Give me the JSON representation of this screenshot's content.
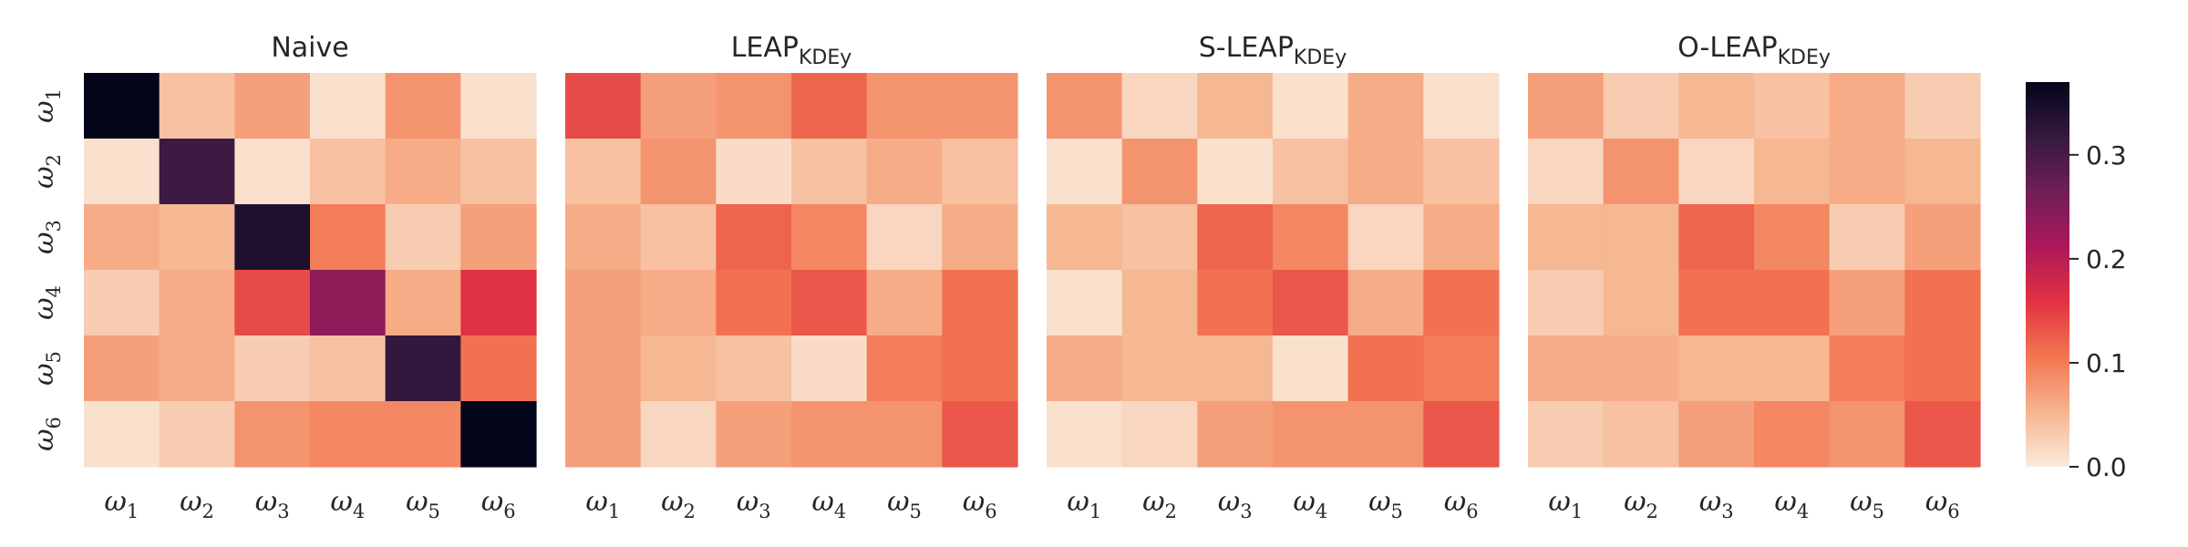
{
  "chart_data": [
    {
      "type": "heatmap",
      "title": "Naive",
      "title_sub": "",
      "x_labels": [
        {
          "base": "ω",
          "sub": "1"
        },
        {
          "base": "ω",
          "sub": "2"
        },
        {
          "base": "ω",
          "sub": "3"
        },
        {
          "base": "ω",
          "sub": "4"
        },
        {
          "base": "ω",
          "sub": "5"
        },
        {
          "base": "ω",
          "sub": "6"
        }
      ],
      "y_labels": [
        {
          "base": "ω",
          "sub": "1"
        },
        {
          "base": "ω",
          "sub": "2"
        },
        {
          "base": "ω",
          "sub": "3"
        },
        {
          "base": "ω",
          "sub": "4"
        },
        {
          "base": "ω",
          "sub": "5"
        },
        {
          "base": "ω",
          "sub": "6"
        }
      ],
      "values": [
        [
          0.37,
          0.04,
          0.07,
          0.01,
          0.08,
          0.01
        ],
        [
          0.01,
          0.31,
          0.01,
          0.04,
          0.06,
          0.04
        ],
        [
          0.06,
          0.05,
          0.34,
          0.1,
          0.03,
          0.07
        ],
        [
          0.03,
          0.06,
          0.14,
          0.24,
          0.06,
          0.16
        ],
        [
          0.07,
          0.06,
          0.03,
          0.04,
          0.32,
          0.11
        ],
        [
          0.01,
          0.03,
          0.08,
          0.09,
          0.09,
          0.37
        ]
      ]
    },
    {
      "type": "heatmap",
      "title": "LEAP",
      "title_sub": "KDEy",
      "x_labels": [
        {
          "base": "ω",
          "sub": "1"
        },
        {
          "base": "ω",
          "sub": "2"
        },
        {
          "base": "ω",
          "sub": "3"
        },
        {
          "base": "ω",
          "sub": "4"
        },
        {
          "base": "ω",
          "sub": "5"
        },
        {
          "base": "ω",
          "sub": "6"
        }
      ],
      "y_labels": [
        {
          "base": "ω",
          "sub": "1"
        },
        {
          "base": "ω",
          "sub": "2"
        },
        {
          "base": "ω",
          "sub": "3"
        },
        {
          "base": "ω",
          "sub": "4"
        },
        {
          "base": "ω",
          "sub": "5"
        },
        {
          "base": "ω",
          "sub": "6"
        }
      ],
      "values": [
        [
          0.14,
          0.07,
          0.08,
          0.12,
          0.08,
          0.08
        ],
        [
          0.04,
          0.08,
          0.015,
          0.04,
          0.06,
          0.04
        ],
        [
          0.06,
          0.04,
          0.12,
          0.09,
          0.02,
          0.06
        ],
        [
          0.07,
          0.06,
          0.11,
          0.13,
          0.06,
          0.11
        ],
        [
          0.07,
          0.05,
          0.04,
          0.015,
          0.1,
          0.11
        ],
        [
          0.07,
          0.02,
          0.07,
          0.08,
          0.08,
          0.13
        ]
      ]
    },
    {
      "type": "heatmap",
      "title": "S-LEAP",
      "title_sub": "KDEy",
      "x_labels": [
        {
          "base": "ω",
          "sub": "1"
        },
        {
          "base": "ω",
          "sub": "2"
        },
        {
          "base": "ω",
          "sub": "3"
        },
        {
          "base": "ω",
          "sub": "4"
        },
        {
          "base": "ω",
          "sub": "5"
        },
        {
          "base": "ω",
          "sub": "6"
        }
      ],
      "y_labels": [
        {
          "base": "ω",
          "sub": "1"
        },
        {
          "base": "ω",
          "sub": "2"
        },
        {
          "base": "ω",
          "sub": "3"
        },
        {
          "base": "ω",
          "sub": "4"
        },
        {
          "base": "ω",
          "sub": "5"
        },
        {
          "base": "ω",
          "sub": "6"
        }
      ],
      "values": [
        [
          0.08,
          0.02,
          0.05,
          0.01,
          0.06,
          0.01
        ],
        [
          0.01,
          0.08,
          0.01,
          0.04,
          0.06,
          0.04
        ],
        [
          0.05,
          0.04,
          0.12,
          0.09,
          0.02,
          0.06
        ],
        [
          0.01,
          0.05,
          0.11,
          0.13,
          0.06,
          0.11
        ],
        [
          0.06,
          0.05,
          0.05,
          0.01,
          0.11,
          0.1
        ],
        [
          0.01,
          0.02,
          0.07,
          0.08,
          0.08,
          0.13
        ]
      ]
    },
    {
      "type": "heatmap",
      "title": "O-LEAP",
      "title_sub": "KDEy",
      "x_labels": [
        {
          "base": "ω",
          "sub": "1"
        },
        {
          "base": "ω",
          "sub": "2"
        },
        {
          "base": "ω",
          "sub": "3"
        },
        {
          "base": "ω",
          "sub": "4"
        },
        {
          "base": "ω",
          "sub": "5"
        },
        {
          "base": "ω",
          "sub": "6"
        }
      ],
      "y_labels": [
        {
          "base": "ω",
          "sub": "1"
        },
        {
          "base": "ω",
          "sub": "2"
        },
        {
          "base": "ω",
          "sub": "3"
        },
        {
          "base": "ω",
          "sub": "4"
        },
        {
          "base": "ω",
          "sub": "5"
        },
        {
          "base": "ω",
          "sub": "6"
        }
      ],
      "values": [
        [
          0.07,
          0.03,
          0.05,
          0.04,
          0.06,
          0.03
        ],
        [
          0.02,
          0.08,
          0.02,
          0.05,
          0.06,
          0.05
        ],
        [
          0.05,
          0.05,
          0.12,
          0.09,
          0.03,
          0.07
        ],
        [
          0.03,
          0.05,
          0.11,
          0.11,
          0.07,
          0.11
        ],
        [
          0.06,
          0.06,
          0.05,
          0.05,
          0.1,
          0.11
        ],
        [
          0.03,
          0.04,
          0.07,
          0.09,
          0.08,
          0.13
        ]
      ]
    }
  ],
  "colorbar": {
    "vmin": 0.0,
    "vmax": 0.37,
    "ticks": [
      {
        "value": 0.0,
        "label": "0.0"
      },
      {
        "value": 0.1,
        "label": "0.1"
      },
      {
        "value": 0.2,
        "label": "0.2"
      },
      {
        "value": 0.3,
        "label": "0.3"
      }
    ],
    "colormap": "rocket_r",
    "stops": [
      "#faebdd",
      "#f6b48f",
      "#f37651",
      "#e13342",
      "#ad1759",
      "#701f57",
      "#35193e",
      "#03051a"
    ]
  }
}
